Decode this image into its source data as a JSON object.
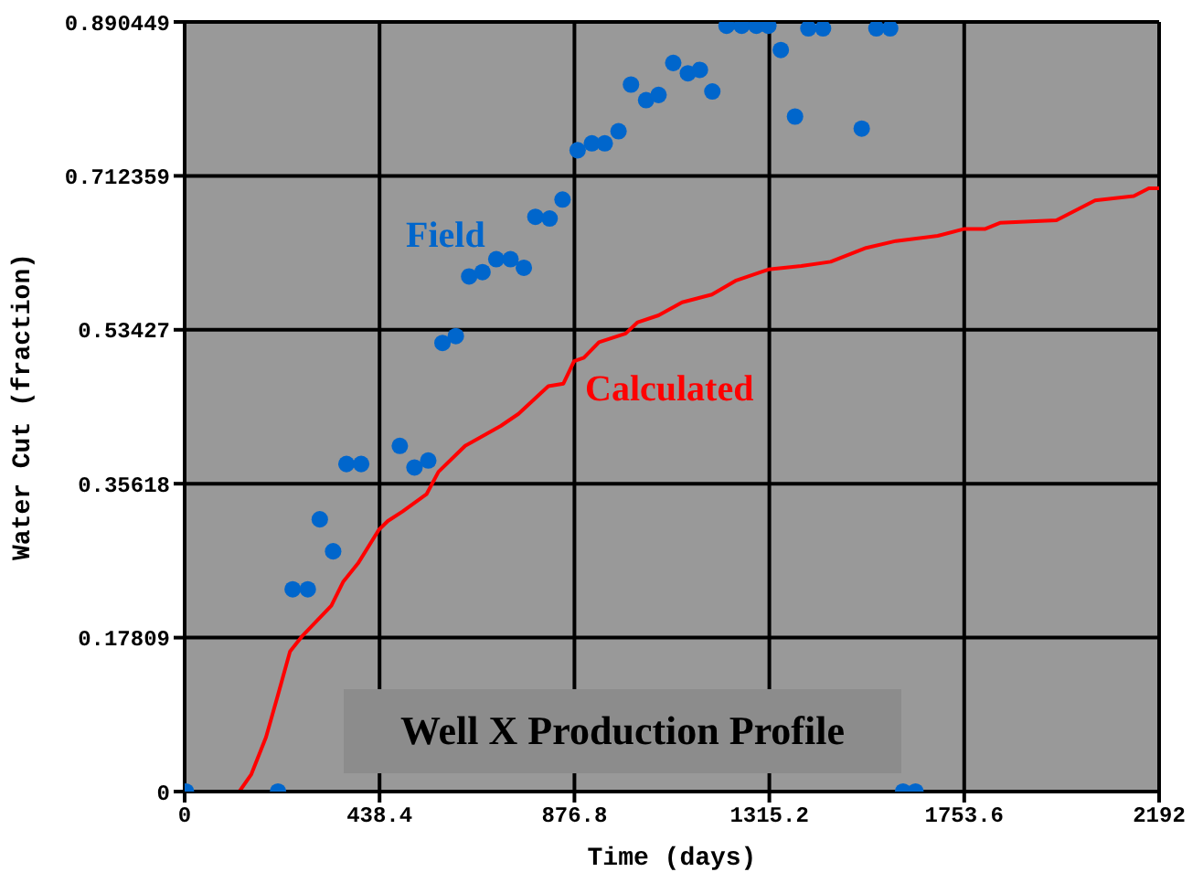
{
  "chart_data": {
    "type": "scatter",
    "title": "Well X Production Profile",
    "xlabel": "Time (days)",
    "ylabel": "Water Cut (fraction)",
    "xlim": [
      0,
      2192
    ],
    "xticks": [
      0,
      438.4,
      876.8,
      1315.2,
      1753.6,
      2192
    ],
    "ylim": [
      0,
      0.890449
    ],
    "yticks": [
      0,
      0.17809,
      0.35618,
      0.53427,
      0.712359,
      0.890449
    ],
    "grid": true,
    "legend": false,
    "series": [
      {
        "name": "Field",
        "marker": "circle",
        "color": "#0066cc",
        "x": [
          3,
          210,
          243,
          277,
          304,
          334,
          364,
          397,
          484,
          517,
          548,
          580,
          610,
          640,
          670,
          701,
          733,
          763,
          789,
          821,
          850,
          884,
          916,
          945,
          976,
          1004,
          1038,
          1066,
          1099,
          1132,
          1159,
          1187,
          1219,
          1253,
          1286,
          1313,
          1341,
          1373,
          1403,
          1436,
          1523,
          1556,
          1587,
          1616,
          1644
        ],
        "values": [
          0,
          0,
          0.234,
          0.234,
          0.315,
          0.278,
          0.379,
          0.379,
          0.4,
          0.375,
          0.383,
          0.519,
          0.527,
          0.596,
          0.601,
          0.616,
          0.616,
          0.606,
          0.665,
          0.663,
          0.685,
          0.742,
          0.75,
          0.75,
          0.764,
          0.818,
          0.8,
          0.806,
          0.843,
          0.831,
          0.835,
          0.81,
          0.886,
          0.886,
          0.886,
          0.886,
          0.858,
          0.781,
          0.883,
          0.883,
          0.767,
          0.883,
          0.883,
          0,
          0
        ]
      },
      {
        "name": "Calculated",
        "type": "line",
        "color": "#ff0000",
        "x": [
          3,
          123,
          150,
          183,
          210,
          237,
          263,
          330,
          357,
          390,
          437,
          457,
          490,
          544,
          571,
          631,
          711,
          751,
          818,
          852,
          876,
          898,
          932,
          992,
          1019,
          1066,
          1119,
          1186,
          1239,
          1313,
          1387,
          1453,
          1533,
          1600,
          1694,
          1754,
          1801,
          1834,
          1961,
          2048,
          2135,
          2169,
          2192
        ],
        "values": [
          0,
          0,
          0.02,
          0.063,
          0.112,
          0.162,
          0.179,
          0.215,
          0.243,
          0.264,
          0.303,
          0.313,
          0.324,
          0.344,
          0.37,
          0.4,
          0.423,
          0.437,
          0.469,
          0.472,
          0.498,
          0.502,
          0.52,
          0.53,
          0.543,
          0.551,
          0.566,
          0.575,
          0.591,
          0.604,
          0.608,
          0.613,
          0.629,
          0.637,
          0.643,
          0.651,
          0.651,
          0.658,
          0.661,
          0.684,
          0.689,
          0.698,
          0.698
        ]
      }
    ]
  }
}
